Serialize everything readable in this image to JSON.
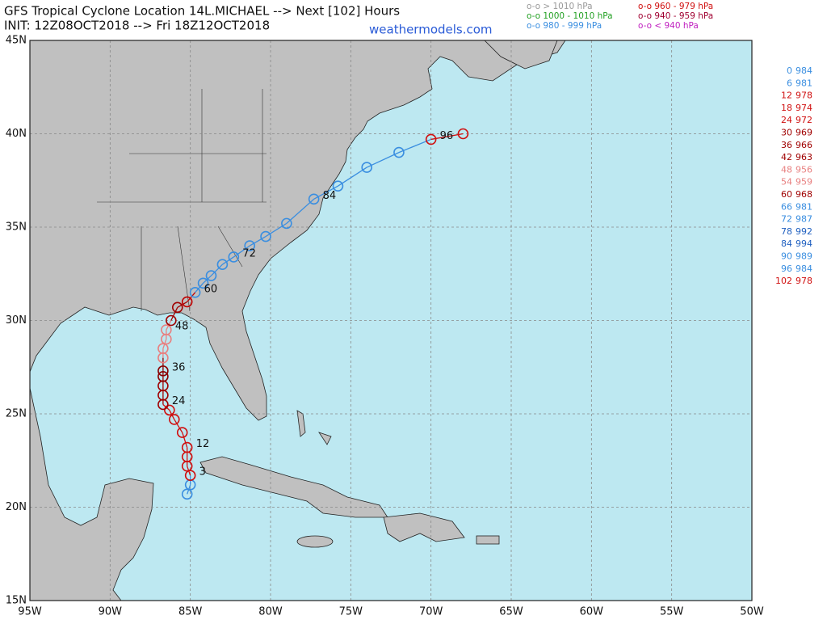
{
  "header": {
    "title": "GFS Tropical Cyclone Location 14L.MICHAEL --> Next [102] Hours",
    "init": "INIT: 12Z08OCT2018 --> Fri 18Z12OCT2018",
    "site": "weathermodels.com"
  },
  "legend": [
    {
      "label": "o-o > 1010 hPa",
      "color": "#999999"
    },
    {
      "label": "o-o 1000 - 1010 hPa",
      "color": "#22a022"
    },
    {
      "label": "o-o 980 - 999 hPa",
      "color": "#3a8ee0"
    },
    {
      "label": "o-o 960 - 979 hPa",
      "color": "#d01010"
    },
    {
      "label": "o-o 940 - 959 hPa",
      "color": "#a00030"
    },
    {
      "label": "o-o < 940 hPa",
      "color": "#c020c0"
    }
  ],
  "map": {
    "lonlim": [
      -95,
      -50
    ],
    "latlim": [
      15,
      45
    ],
    "lon_ticks": [
      {
        "value": -95,
        "label": "95W"
      },
      {
        "value": -90,
        "label": "90W"
      },
      {
        "value": -85,
        "label": "85W"
      },
      {
        "value": -80,
        "label": "80W"
      },
      {
        "value": -75,
        "label": "75W"
      },
      {
        "value": -70,
        "label": "70W"
      },
      {
        "value": -65,
        "label": "65W"
      },
      {
        "value": -60,
        "label": "60W"
      },
      {
        "value": -55,
        "label": "55W"
      },
      {
        "value": -50,
        "label": "50W"
      }
    ],
    "lat_ticks": [
      {
        "value": 45,
        "label": "45N"
      },
      {
        "value": 40,
        "label": "40N"
      },
      {
        "value": 35,
        "label": "35N"
      },
      {
        "value": 30,
        "label": "30N"
      },
      {
        "value": 25,
        "label": "25N"
      },
      {
        "value": 20,
        "label": "20N"
      },
      {
        "value": 15,
        "label": "15N"
      }
    ],
    "track": [
      {
        "lon": -85.2,
        "lat": 20.7,
        "color": "#3a8ee0"
      },
      {
        "lon": -85.0,
        "lat": 21.2,
        "color": "#3a8ee0"
      },
      {
        "lon": -85.0,
        "lat": 21.7,
        "color": "#d01010"
      },
      {
        "lon": -85.2,
        "lat": 22.2,
        "color": "#d01010"
      },
      {
        "lon": -85.2,
        "lat": 22.7,
        "color": "#d01010"
      },
      {
        "lon": -85.2,
        "lat": 23.2,
        "color": "#d01010"
      },
      {
        "lon": -85.5,
        "lat": 24.0,
        "color": "#d01010"
      },
      {
        "lon": -86.0,
        "lat": 24.7,
        "color": "#d01010"
      },
      {
        "lon": -86.3,
        "lat": 25.2,
        "color": "#d01010"
      },
      {
        "lon": -86.7,
        "lat": 25.5,
        "color": "#a00000"
      },
      {
        "lon": -86.7,
        "lat": 26.0,
        "color": "#a00000"
      },
      {
        "lon": -86.7,
        "lat": 26.5,
        "color": "#a00000"
      },
      {
        "lon": -86.7,
        "lat": 27.0,
        "color": "#8b0000"
      },
      {
        "lon": -86.7,
        "lat": 27.3,
        "color": "#8b0000"
      },
      {
        "lon": -86.7,
        "lat": 28.0,
        "color": "#e88080"
      },
      {
        "lon": -86.7,
        "lat": 28.5,
        "color": "#e88080"
      },
      {
        "lon": -86.5,
        "lat": 29.0,
        "color": "#e88080"
      },
      {
        "lon": -86.5,
        "lat": 29.5,
        "color": "#e88080"
      },
      {
        "lon": -86.2,
        "lat": 30.0,
        "color": "#a00000"
      },
      {
        "lon": -85.8,
        "lat": 30.7,
        "color": "#a00000"
      },
      {
        "lon": -85.2,
        "lat": 31.0,
        "color": "#c00000"
      },
      {
        "lon": -84.7,
        "lat": 31.5,
        "color": "#3a8ee0"
      },
      {
        "lon": -84.2,
        "lat": 32.0,
        "color": "#3a8ee0"
      },
      {
        "lon": -83.7,
        "lat": 32.4,
        "color": "#3a8ee0"
      },
      {
        "lon": -83.0,
        "lat": 33.0,
        "color": "#3a8ee0"
      },
      {
        "lon": -82.3,
        "lat": 33.4,
        "color": "#3a8ee0"
      },
      {
        "lon": -81.3,
        "lat": 34.0,
        "color": "#3a8ee0"
      },
      {
        "lon": -80.3,
        "lat": 34.5,
        "color": "#3a8ee0"
      },
      {
        "lon": -79.0,
        "lat": 35.2,
        "color": "#3a8ee0"
      },
      {
        "lon": -77.3,
        "lat": 36.5,
        "color": "#3a8ee0"
      },
      {
        "lon": -75.8,
        "lat": 37.2,
        "color": "#3a8ee0"
      },
      {
        "lon": -74.0,
        "lat": 38.2,
        "color": "#3a8ee0"
      },
      {
        "lon": -72.0,
        "lat": 39.0,
        "color": "#3a8ee0"
      },
      {
        "lon": -70.0,
        "lat": 39.7,
        "color": "#d01010"
      },
      {
        "lon": -68.0,
        "lat": 40.0,
        "color": "#d01010"
      }
    ],
    "hour_labels": [
      3,
      12,
      24,
      36,
      48,
      60,
      72,
      84,
      96
    ]
  },
  "pressure_list": [
    {
      "hour": 0,
      "pressure": 984,
      "color": "#3a8ee0"
    },
    {
      "hour": 6,
      "pressure": 981,
      "color": "#3a8ee0"
    },
    {
      "hour": 12,
      "pressure": 978,
      "color": "#d01010"
    },
    {
      "hour": 18,
      "pressure": 974,
      "color": "#d01010"
    },
    {
      "hour": 24,
      "pressure": 972,
      "color": "#d01010"
    },
    {
      "hour": 30,
      "pressure": 969,
      "color": "#a00000"
    },
    {
      "hour": 36,
      "pressure": 966,
      "color": "#a00000"
    },
    {
      "hour": 42,
      "pressure": 963,
      "color": "#a00000"
    },
    {
      "hour": 48,
      "pressure": 956,
      "color": "#e88080"
    },
    {
      "hour": 54,
      "pressure": 959,
      "color": "#e88080"
    },
    {
      "hour": 60,
      "pressure": 968,
      "color": "#a00000"
    },
    {
      "hour": 66,
      "pressure": 981,
      "color": "#3a8ee0"
    },
    {
      "hour": 72,
      "pressure": 987,
      "color": "#3a8ee0"
    },
    {
      "hour": 78,
      "pressure": 992,
      "color": "#2060c0"
    },
    {
      "hour": 84,
      "pressure": 994,
      "color": "#2060c0"
    },
    {
      "hour": 90,
      "pressure": 989,
      "color": "#3a8ee0"
    },
    {
      "hour": 96,
      "pressure": 984,
      "color": "#3a8ee0"
    },
    {
      "hour": 102,
      "pressure": 978,
      "color": "#d01010"
    }
  ]
}
